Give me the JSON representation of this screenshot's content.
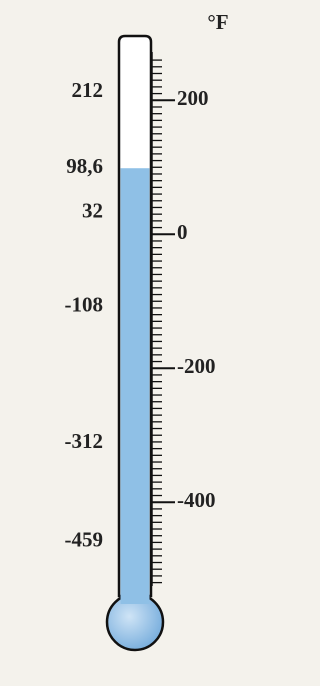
{
  "chart_data": {
    "type": "thermometer",
    "unit": "°F",
    "ylim": [
      -540,
      290
    ],
    "yticks": [
      200,
      0,
      -200,
      -400
    ],
    "marked_values": [
      212,
      {
        "value": 98.6,
        "label": "98,6"
      },
      32,
      -108,
      -312,
      -459
    ],
    "level": 98.6,
    "color": "#8fc0e6"
  }
}
